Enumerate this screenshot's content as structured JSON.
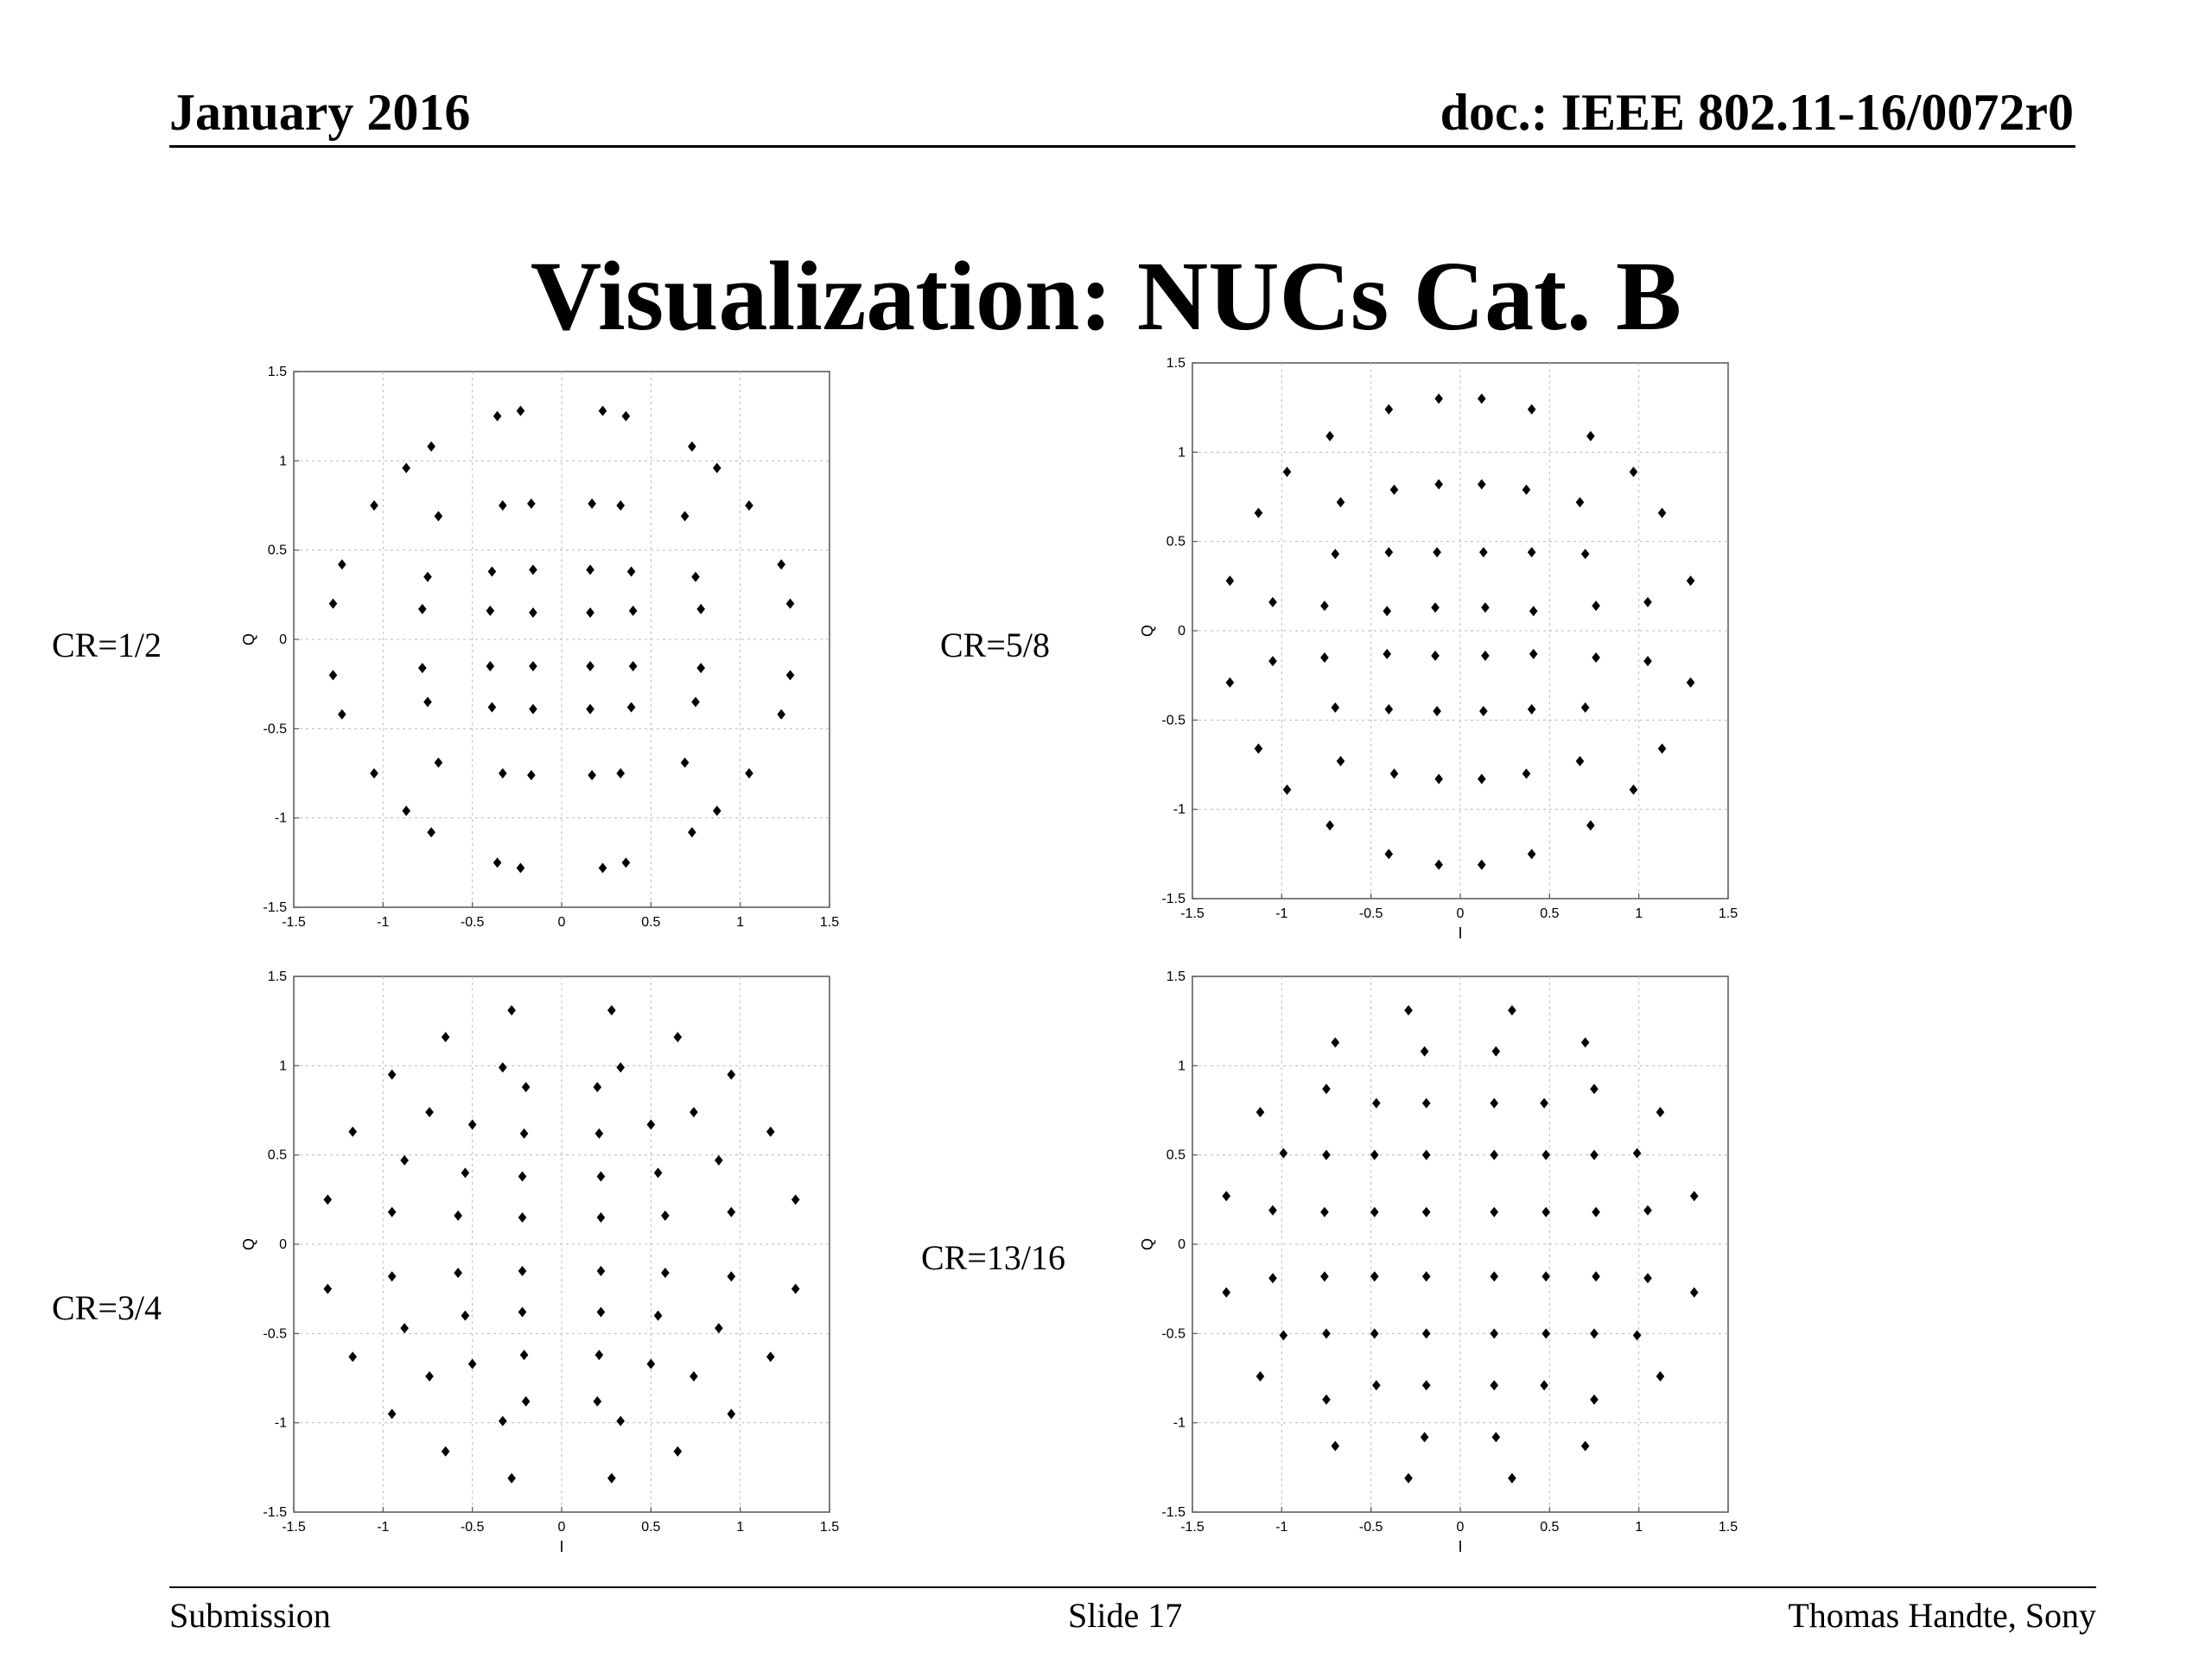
{
  "header": {
    "date": "January 2016",
    "doc_id": "doc.: IEEE 802.11-16/0072r0"
  },
  "title": "Visualization: NUCs Cat. B",
  "footer": {
    "left": "Submission",
    "center": "Slide 17",
    "right": "Thomas Handte, Sony"
  },
  "chart_data": [
    {
      "type": "scatter",
      "label": "CR=1/2",
      "xlabel": "",
      "ylabel": "Q",
      "xlim": [
        -1.5,
        1.5
      ],
      "ylim": [
        -1.5,
        1.5
      ],
      "xticks": [
        "-1.5",
        "-1",
        "-0.5",
        "0",
        "0.5",
        "1",
        "1.5"
      ],
      "yticks": [
        "-1.5",
        "-1",
        "-0.5",
        "0",
        "0.5",
        "1",
        "1.5"
      ],
      "grid": true,
      "points": [
        [
          -0.36,
          1.25
        ],
        [
          -0.23,
          1.28
        ],
        [
          0.23,
          1.28
        ],
        [
          0.36,
          1.25
        ],
        [
          -0.73,
          1.08
        ],
        [
          -0.87,
          0.96
        ],
        [
          0.73,
          1.08
        ],
        [
          0.87,
          0.96
        ],
        [
          -1.05,
          0.75
        ],
        [
          -0.69,
          0.69
        ],
        [
          -0.33,
          0.75
        ],
        [
          -0.17,
          0.76
        ],
        [
          0.17,
          0.76
        ],
        [
          0.33,
          0.75
        ],
        [
          0.69,
          0.69
        ],
        [
          1.05,
          0.75
        ],
        [
          -1.23,
          0.42
        ],
        [
          -1.28,
          0.2
        ],
        [
          1.23,
          0.42
        ],
        [
          1.28,
          0.2
        ],
        [
          -0.75,
          0.35
        ],
        [
          -0.39,
          0.38
        ],
        [
          -0.16,
          0.39
        ],
        [
          0.16,
          0.39
        ],
        [
          0.39,
          0.38
        ],
        [
          0.75,
          0.35
        ],
        [
          -0.78,
          0.17
        ],
        [
          -0.4,
          0.16
        ],
        [
          -0.16,
          0.15
        ],
        [
          0.16,
          0.15
        ],
        [
          0.4,
          0.16
        ],
        [
          0.78,
          0.17
        ],
        [
          -1.28,
          -0.2
        ],
        [
          -1.23,
          -0.42
        ],
        [
          1.28,
          -0.2
        ],
        [
          1.23,
          -0.42
        ],
        [
          -0.78,
          -0.16
        ],
        [
          -0.4,
          -0.15
        ],
        [
          -0.16,
          -0.15
        ],
        [
          0.16,
          -0.15
        ],
        [
          0.4,
          -0.15
        ],
        [
          0.78,
          -0.16
        ],
        [
          -0.75,
          -0.35
        ],
        [
          -0.39,
          -0.38
        ],
        [
          -0.16,
          -0.39
        ],
        [
          0.16,
          -0.39
        ],
        [
          0.39,
          -0.38
        ],
        [
          0.75,
          -0.35
        ],
        [
          -1.05,
          -0.75
        ],
        [
          -0.69,
          -0.69
        ],
        [
          -0.33,
          -0.75
        ],
        [
          -0.17,
          -0.76
        ],
        [
          0.17,
          -0.76
        ],
        [
          0.33,
          -0.75
        ],
        [
          0.69,
          -0.69
        ],
        [
          1.05,
          -0.75
        ],
        [
          -0.87,
          -0.96
        ],
        [
          -0.73,
          -1.08
        ],
        [
          0.87,
          -0.96
        ],
        [
          0.73,
          -1.08
        ],
        [
          -0.36,
          -1.25
        ],
        [
          -0.23,
          -1.28
        ],
        [
          0.23,
          -1.28
        ],
        [
          0.36,
          -1.25
        ]
      ]
    },
    {
      "type": "scatter",
      "label": "CR=5/8",
      "xlabel": "I",
      "ylabel": "Q",
      "xlim": [
        -1.5,
        1.5
      ],
      "ylim": [
        -1.5,
        1.5
      ],
      "xticks": [
        "-1.5",
        "-1",
        "-0.5",
        "0",
        "0.5",
        "1",
        "1.5"
      ],
      "yticks": [
        "-1.5",
        "-1",
        "-0.5",
        "0",
        "0.5",
        "1",
        "1.5"
      ],
      "grid": true,
      "points": [
        [
          -0.4,
          1.24
        ],
        [
          -0.12,
          1.3
        ],
        [
          0.12,
          1.3
        ],
        [
          0.4,
          1.24
        ],
        [
          -0.73,
          1.09
        ],
        [
          0.73,
          1.09
        ],
        [
          -0.97,
          0.89
        ],
        [
          0.97,
          0.89
        ],
        [
          -1.13,
          0.66
        ],
        [
          1.13,
          0.66
        ],
        [
          -0.67,
          0.72
        ],
        [
          -0.37,
          0.79
        ],
        [
          -0.12,
          0.82
        ],
        [
          0.12,
          0.82
        ],
        [
          0.37,
          0.79
        ],
        [
          0.67,
          0.72
        ],
        [
          -0.7,
          0.43
        ],
        [
          -0.4,
          0.44
        ],
        [
          -0.13,
          0.44
        ],
        [
          0.13,
          0.44
        ],
        [
          0.4,
          0.44
        ],
        [
          0.7,
          0.43
        ],
        [
          -1.29,
          0.28
        ],
        [
          1.29,
          0.28
        ],
        [
          -1.05,
          0.16
        ],
        [
          -0.76,
          0.14
        ],
        [
          -0.41,
          0.11
        ],
        [
          -0.14,
          0.13
        ],
        [
          0.14,
          0.13
        ],
        [
          0.41,
          0.11
        ],
        [
          0.76,
          0.14
        ],
        [
          1.05,
          0.16
        ],
        [
          -1.05,
          -0.17
        ],
        [
          -0.76,
          -0.15
        ],
        [
          -0.41,
          -0.13
        ],
        [
          -0.14,
          -0.14
        ],
        [
          0.14,
          -0.14
        ],
        [
          0.41,
          -0.13
        ],
        [
          0.76,
          -0.15
        ],
        [
          1.05,
          -0.17
        ],
        [
          -1.29,
          -0.29
        ],
        [
          1.29,
          -0.29
        ],
        [
          -0.7,
          -0.43
        ],
        [
          -0.4,
          -0.44
        ],
        [
          -0.13,
          -0.45
        ],
        [
          0.13,
          -0.45
        ],
        [
          0.4,
          -0.44
        ],
        [
          0.7,
          -0.43
        ],
        [
          -1.13,
          -0.66
        ],
        [
          1.13,
          -0.66
        ],
        [
          -0.67,
          -0.73
        ],
        [
          -0.37,
          -0.8
        ],
        [
          -0.12,
          -0.83
        ],
        [
          0.12,
          -0.83
        ],
        [
          0.37,
          -0.8
        ],
        [
          0.67,
          -0.73
        ],
        [
          -0.97,
          -0.89
        ],
        [
          0.97,
          -0.89
        ],
        [
          -0.73,
          -1.09
        ],
        [
          0.73,
          -1.09
        ],
        [
          -0.4,
          -1.25
        ],
        [
          -0.12,
          -1.31
        ],
        [
          0.12,
          -1.31
        ],
        [
          0.4,
          -1.25
        ]
      ]
    },
    {
      "type": "scatter",
      "label": "CR=3/4",
      "xlabel": "I",
      "ylabel": "Q",
      "xlim": [
        -1.5,
        1.5
      ],
      "ylim": [
        -1.5,
        1.5
      ],
      "xticks": [
        "-1.5",
        "-1",
        "-0.5",
        "0",
        "0.5",
        "1",
        "1.5"
      ],
      "yticks": [
        "-1.5",
        "-1",
        "-0.5",
        "0",
        "0.5",
        "1",
        "1.5"
      ],
      "grid": true,
      "points": [
        [
          -0.28,
          1.31
        ],
        [
          0.28,
          1.31
        ],
        [
          -0.65,
          1.16
        ],
        [
          0.65,
          1.16
        ],
        [
          -0.95,
          0.95
        ],
        [
          -0.33,
          0.99
        ],
        [
          0.33,
          0.99
        ],
        [
          0.95,
          0.95
        ],
        [
          -0.2,
          0.88
        ],
        [
          0.2,
          0.88
        ],
        [
          -0.74,
          0.74
        ],
        [
          0.74,
          0.74
        ],
        [
          -1.17,
          0.63
        ],
        [
          1.17,
          0.63
        ],
        [
          -0.5,
          0.67
        ],
        [
          -0.21,
          0.62
        ],
        [
          0.21,
          0.62
        ],
        [
          0.5,
          0.67
        ],
        [
          -0.88,
          0.47
        ],
        [
          0.88,
          0.47
        ],
        [
          -0.54,
          0.4
        ],
        [
          -0.22,
          0.38
        ],
        [
          0.22,
          0.38
        ],
        [
          0.54,
          0.4
        ],
        [
          -1.31,
          0.25
        ],
        [
          1.31,
          0.25
        ],
        [
          -0.95,
          0.18
        ],
        [
          -0.58,
          0.16
        ],
        [
          -0.22,
          0.15
        ],
        [
          0.22,
          0.15
        ],
        [
          0.58,
          0.16
        ],
        [
          0.95,
          0.18
        ],
        [
          -0.95,
          -0.18
        ],
        [
          -0.58,
          -0.16
        ],
        [
          -0.22,
          -0.15
        ],
        [
          0.22,
          -0.15
        ],
        [
          0.58,
          -0.16
        ],
        [
          0.95,
          -0.18
        ],
        [
          -1.31,
          -0.25
        ],
        [
          1.31,
          -0.25
        ],
        [
          -0.54,
          -0.4
        ],
        [
          -0.22,
          -0.38
        ],
        [
          0.22,
          -0.38
        ],
        [
          0.54,
          -0.4
        ],
        [
          -0.88,
          -0.47
        ],
        [
          0.88,
          -0.47
        ],
        [
          -0.5,
          -0.67
        ],
        [
          -0.21,
          -0.62
        ],
        [
          0.21,
          -0.62
        ],
        [
          0.5,
          -0.67
        ],
        [
          -1.17,
          -0.63
        ],
        [
          1.17,
          -0.63
        ],
        [
          -0.74,
          -0.74
        ],
        [
          0.74,
          -0.74
        ],
        [
          -0.2,
          -0.88
        ],
        [
          0.2,
          -0.88
        ],
        [
          -0.95,
          -0.95
        ],
        [
          -0.33,
          -0.99
        ],
        [
          0.33,
          -0.99
        ],
        [
          0.95,
          -0.95
        ],
        [
          -0.65,
          -1.16
        ],
        [
          0.65,
          -1.16
        ],
        [
          -0.28,
          -1.31
        ],
        [
          0.28,
          -1.31
        ]
      ]
    },
    {
      "type": "scatter",
      "label": "CR=13/16",
      "xlabel": "I",
      "ylabel": "Q",
      "xlim": [
        -1.5,
        1.5
      ],
      "ylim": [
        -1.5,
        1.5
      ],
      "xticks": [
        "-1.5",
        "-1",
        "-0.5",
        "0",
        "0.5",
        "1",
        "1.5"
      ],
      "yticks": [
        "-1.5",
        "-1",
        "-0.5",
        "0",
        "0.5",
        "1",
        "1.5"
      ],
      "grid": true,
      "points": [
        [
          -0.29,
          1.31
        ],
        [
          0.29,
          1.31
        ],
        [
          -0.7,
          1.13
        ],
        [
          0.7,
          1.13
        ],
        [
          -0.2,
          1.08
        ],
        [
          0.2,
          1.08
        ],
        [
          -0.75,
          0.87
        ],
        [
          0.75,
          0.87
        ],
        [
          -0.47,
          0.79
        ],
        [
          -0.19,
          0.79
        ],
        [
          0.19,
          0.79
        ],
        [
          0.47,
          0.79
        ],
        [
          -1.12,
          0.74
        ],
        [
          1.12,
          0.74
        ],
        [
          -0.99,
          0.51
        ],
        [
          -0.75,
          0.5
        ],
        [
          -0.48,
          0.5
        ],
        [
          -0.19,
          0.5
        ],
        [
          0.19,
          0.5
        ],
        [
          0.48,
          0.5
        ],
        [
          0.75,
          0.5
        ],
        [
          0.99,
          0.51
        ],
        [
          -1.31,
          0.27
        ],
        [
          1.31,
          0.27
        ],
        [
          -1.05,
          0.19
        ],
        [
          -0.76,
          0.18
        ],
        [
          -0.48,
          0.18
        ],
        [
          -0.19,
          0.18
        ],
        [
          0.19,
          0.18
        ],
        [
          0.48,
          0.18
        ],
        [
          0.76,
          0.18
        ],
        [
          1.05,
          0.19
        ],
        [
          -1.05,
          -0.19
        ],
        [
          -0.76,
          -0.18
        ],
        [
          -0.48,
          -0.18
        ],
        [
          -0.19,
          -0.18
        ],
        [
          0.19,
          -0.18
        ],
        [
          0.48,
          -0.18
        ],
        [
          0.76,
          -0.18
        ],
        [
          1.05,
          -0.19
        ],
        [
          -1.31,
          -0.27
        ],
        [
          1.31,
          -0.27
        ],
        [
          -0.99,
          -0.51
        ],
        [
          -0.75,
          -0.5
        ],
        [
          -0.48,
          -0.5
        ],
        [
          -0.19,
          -0.5
        ],
        [
          0.19,
          -0.5
        ],
        [
          0.48,
          -0.5
        ],
        [
          0.75,
          -0.5
        ],
        [
          0.99,
          -0.51
        ],
        [
          -1.12,
          -0.74
        ],
        [
          1.12,
          -0.74
        ],
        [
          -0.47,
          -0.79
        ],
        [
          -0.19,
          -0.79
        ],
        [
          0.19,
          -0.79
        ],
        [
          0.47,
          -0.79
        ],
        [
          -0.75,
          -0.87
        ],
        [
          0.75,
          -0.87
        ],
        [
          -0.2,
          -1.08
        ],
        [
          0.2,
          -1.08
        ],
        [
          -0.7,
          -1.13
        ],
        [
          0.7,
          -1.13
        ],
        [
          -0.29,
          -1.31
        ],
        [
          0.29,
          -1.31
        ]
      ]
    }
  ]
}
